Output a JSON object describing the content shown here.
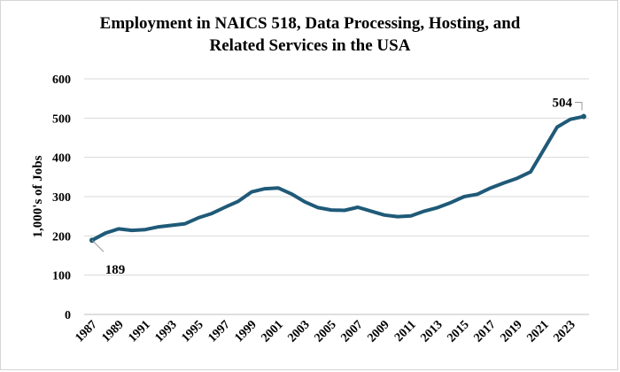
{
  "chart_data": {
    "type": "line",
    "title_line1": "Employment in NAICS 518, Data Processing, Hosting, and",
    "title_line2": "Related Services in the USA",
    "xlabel": "",
    "ylabel": "1,000's of Jobs",
    "ylim": [
      0,
      600
    ],
    "yticks": [
      "0",
      "100",
      "200",
      "300",
      "400",
      "500",
      "600"
    ],
    "xlim": [
      1987,
      2024
    ],
    "xticks": [
      "1987",
      "1989",
      "1991",
      "1993",
      "1995",
      "1997",
      "1999",
      "2001",
      "2003",
      "2005",
      "2007",
      "2009",
      "2011",
      "2013",
      "2015",
      "2017",
      "2019",
      "2021",
      "2023"
    ],
    "grid": "horizontal",
    "series": [
      {
        "name": "Employment",
        "color": "#1f5a78",
        "x": [
          1987,
          1988,
          1989,
          1990,
          1991,
          1992,
          1993,
          1994,
          1995,
          1996,
          1997,
          1998,
          1999,
          2000,
          2001,
          2002,
          2003,
          2004,
          2005,
          2006,
          2007,
          2008,
          2009,
          2010,
          2011,
          2012,
          2013,
          2014,
          2015,
          2016,
          2017,
          2018,
          2019,
          2020,
          2021,
          2022,
          2023,
          2024
        ],
        "values": [
          189,
          207,
          218,
          214,
          216,
          223,
          227,
          231,
          246,
          257,
          273,
          288,
          312,
          320,
          322,
          307,
          287,
          272,
          266,
          265,
          273,
          263,
          253,
          249,
          251,
          263,
          272,
          285,
          300,
          306,
          322,
          335,
          347,
          363,
          420,
          477,
          497,
          504
        ]
      }
    ],
    "annotations": [
      {
        "label": "189",
        "x": 1987,
        "y": 189
      },
      {
        "label": "504",
        "x": 2024,
        "y": 504
      }
    ]
  }
}
